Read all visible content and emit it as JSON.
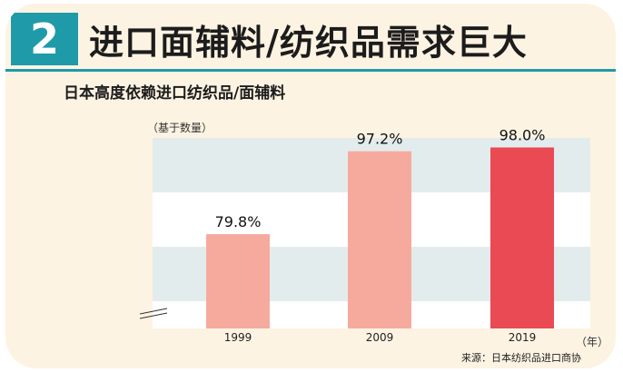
{
  "header": {
    "number": "2",
    "title": "进口面辅料/纺织品需求巨大"
  },
  "chart_data": {
    "type": "bar",
    "title": "日本高度依赖进口纺织品/面辅料",
    "ylabel": "（基于数量）",
    "xlabel": "（年）",
    "categories": [
      "1999",
      "2009",
      "2019"
    ],
    "values": [
      79.8,
      97.2,
      98.0
    ],
    "data_labels": [
      "79.8%",
      "97.2%",
      "98.0%"
    ],
    "ylim": [
      60,
      100
    ],
    "axis_break": true,
    "grid": "alternating-bands",
    "colors": {
      "bars": [
        "#f6aa9e",
        "#f6aa9e",
        "#ea4a54"
      ],
      "band": "#e3ecec",
      "accent": "#1f9aa8"
    }
  },
  "source": "来源：日本纺织品进口商协"
}
